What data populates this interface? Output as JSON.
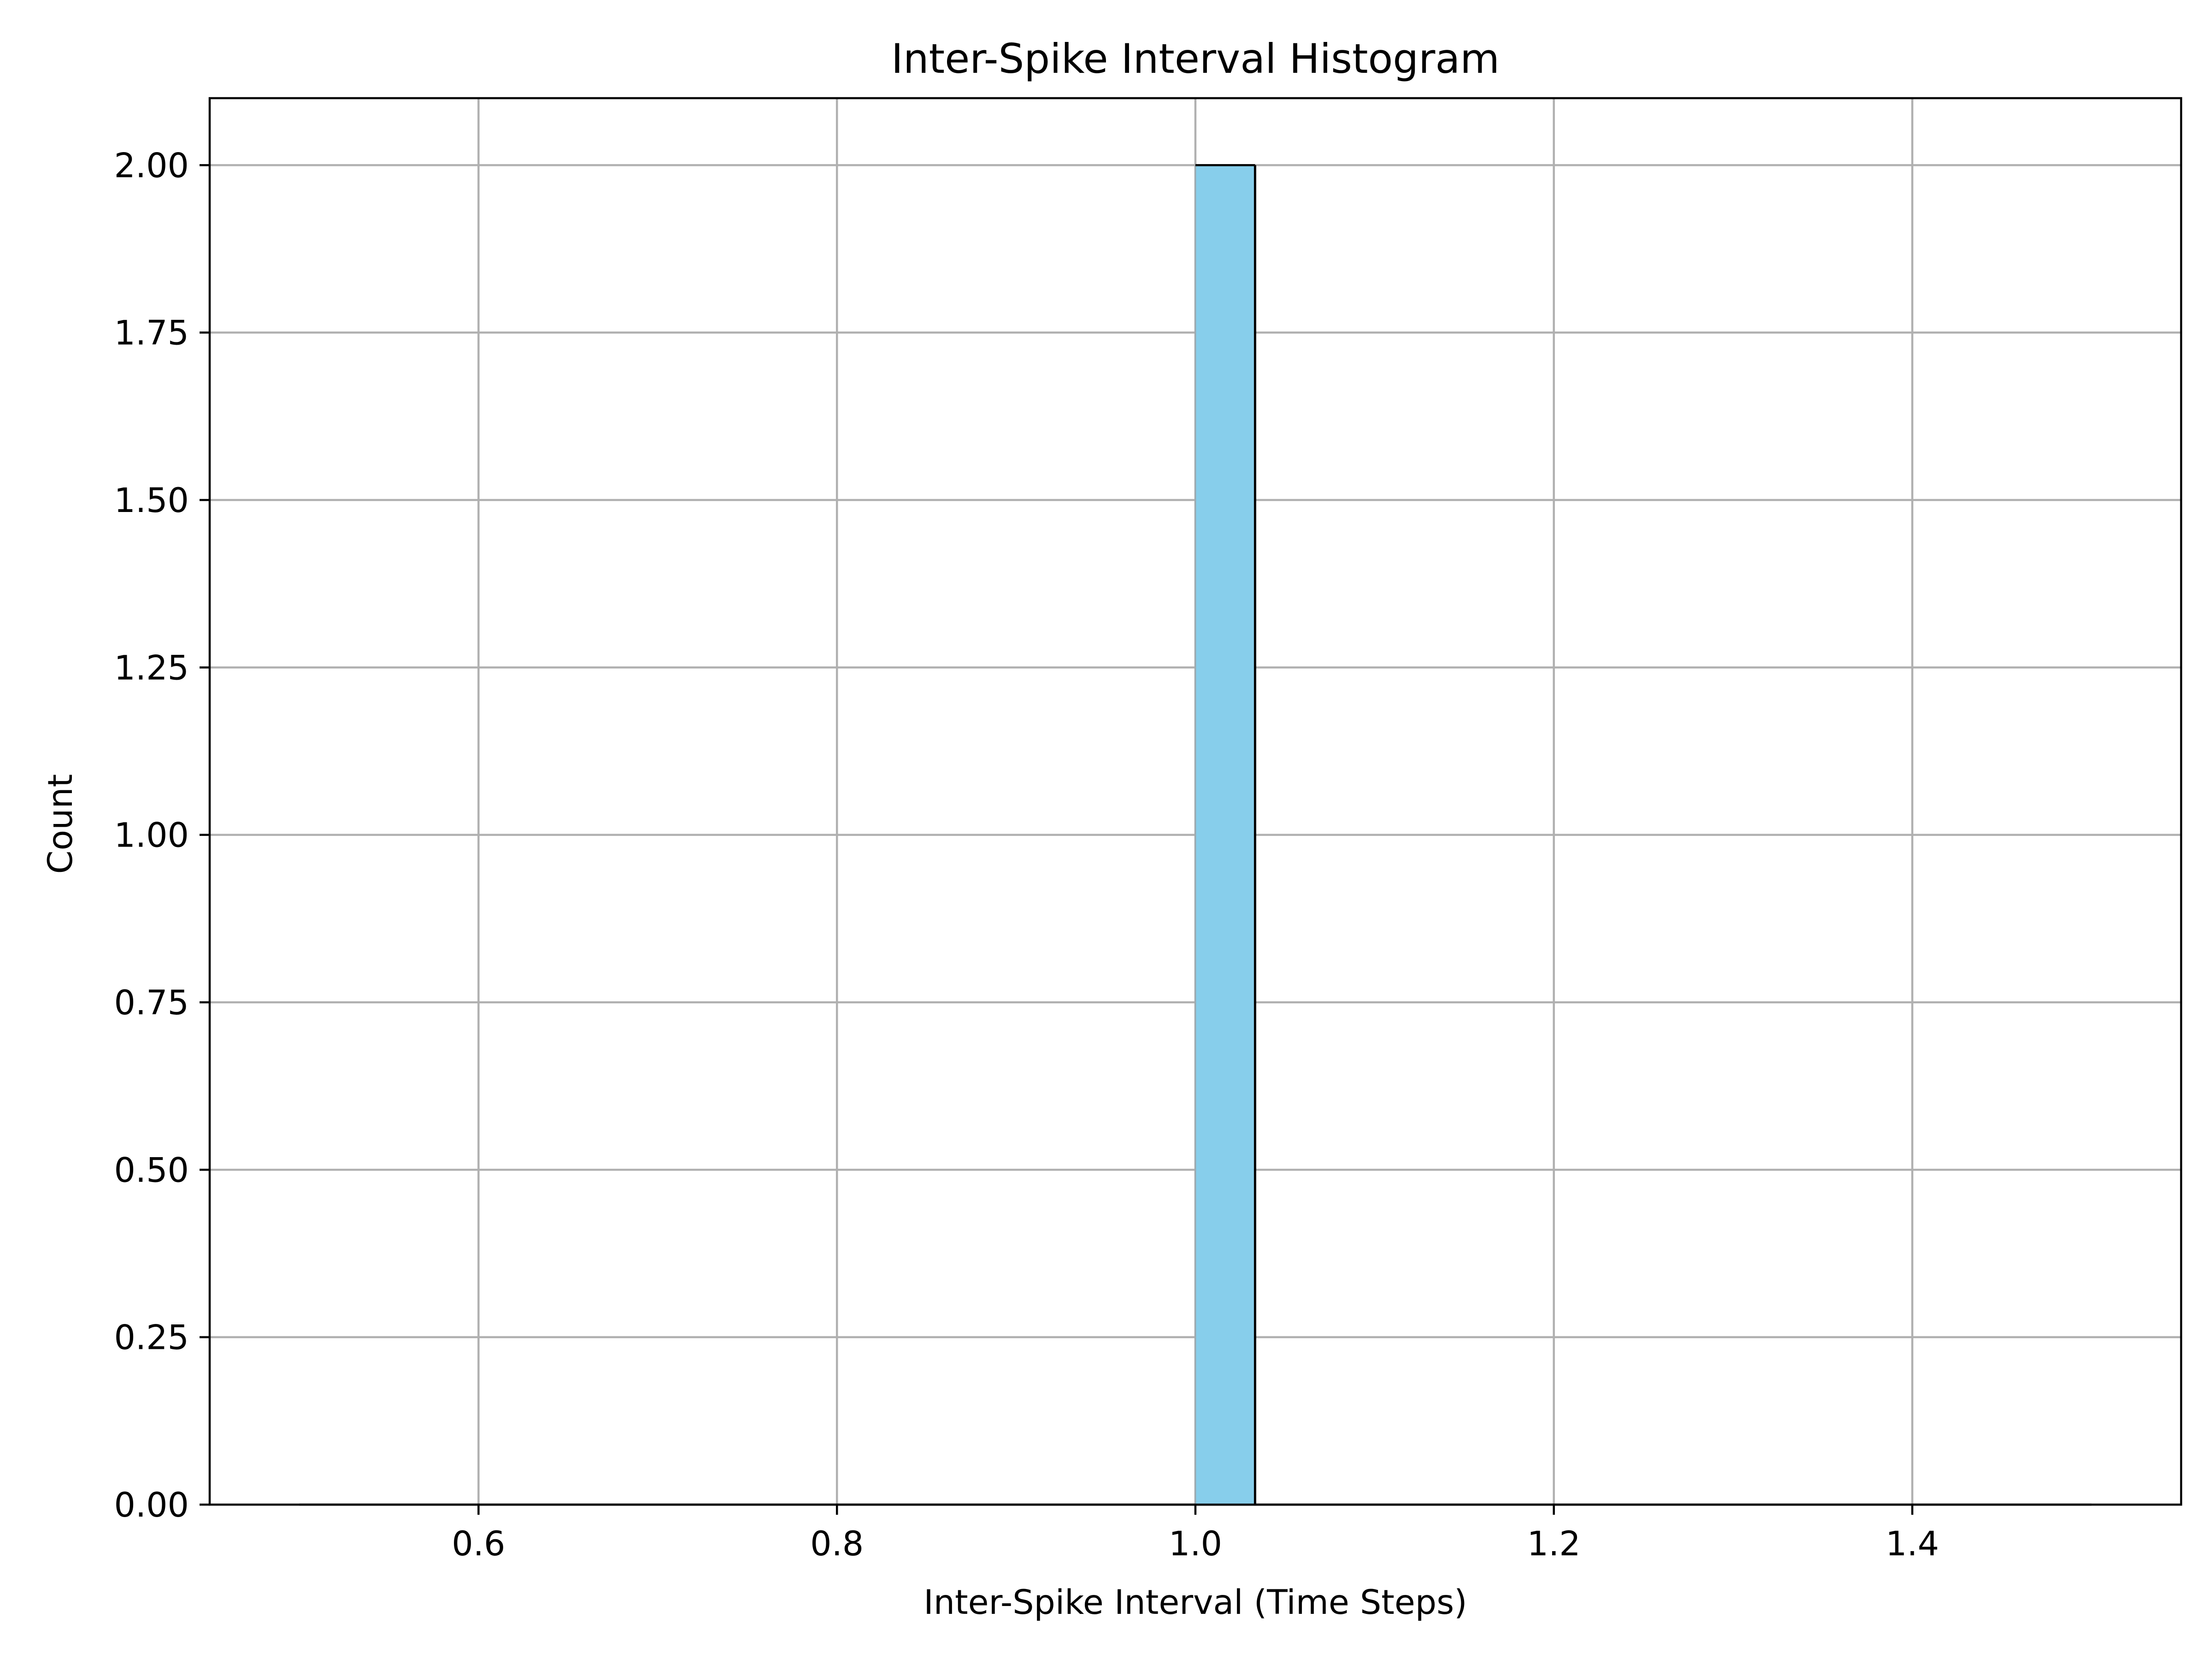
{
  "chart_data": {
    "type": "bar",
    "title": "Inter-Spike Interval Histogram",
    "xlabel": "Inter-Spike Interval (Time Steps)",
    "ylabel": "Count",
    "xlim": [
      0.45,
      1.55
    ],
    "ylim": [
      0,
      2.1
    ],
    "x_ticks": [
      0.6,
      0.8,
      1.0,
      1.2,
      1.4
    ],
    "x_tick_labels": [
      "0.6",
      "0.8",
      "1.0",
      "1.2",
      "1.4"
    ],
    "y_ticks": [
      0,
      0.25,
      0.5,
      0.75,
      1.0,
      1.25,
      1.5,
      1.75,
      2.0
    ],
    "y_tick_labels": [
      "0.00",
      "0.25",
      "0.50",
      "0.75",
      "1.00",
      "1.25",
      "1.50",
      "1.75",
      "2.00"
    ],
    "bin_range": [
      0.5,
      1.5
    ],
    "bin_width": 0.0333,
    "bins": [
      {
        "x0": 1.0,
        "x1": 1.0333,
        "count": 2
      }
    ],
    "grid": true,
    "bar_color": "#87CEEB",
    "edge_color": "#000000",
    "grid_color": "#b0b0b0"
  }
}
